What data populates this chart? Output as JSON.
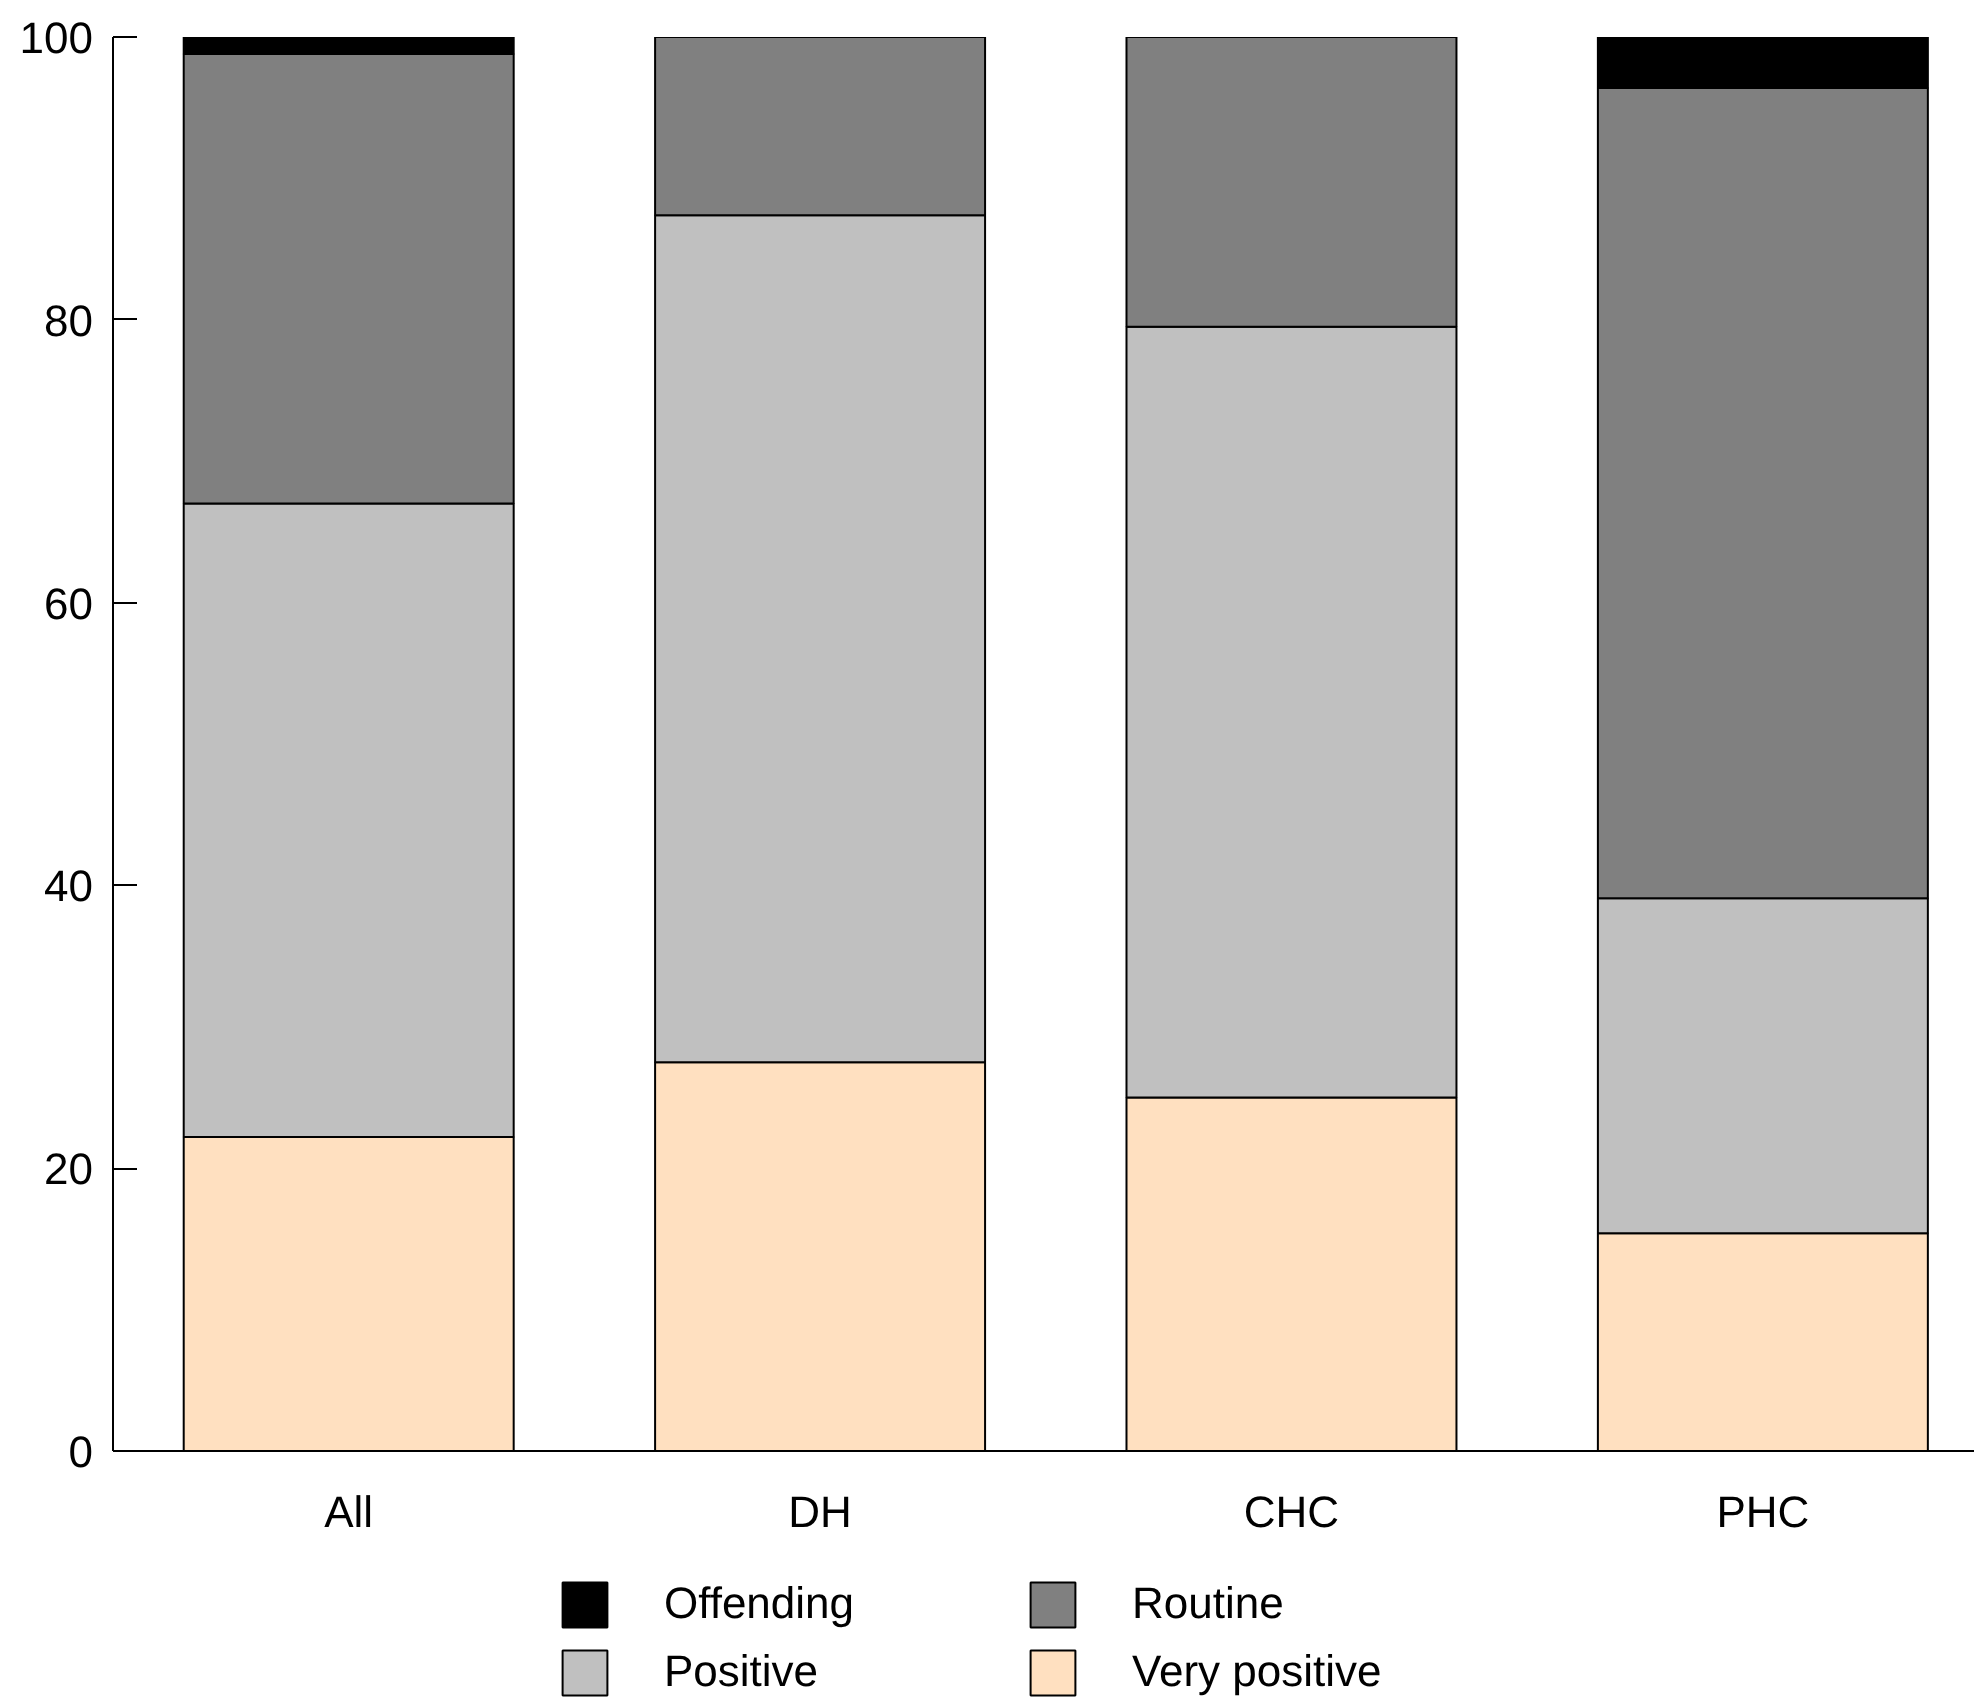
{
  "chart_data": {
    "type": "bar",
    "stacked": true,
    "categories": [
      "All",
      "DH",
      "CHC",
      "PHC"
    ],
    "series": [
      {
        "name": "Very positive",
        "color": "#ffe0c0",
        "values": [
          22.2,
          27.5,
          25.0,
          15.4
        ]
      },
      {
        "name": "Positive",
        "color": "#c0c0c0",
        "values": [
          44.8,
          59.9,
          54.5,
          23.7
        ]
      },
      {
        "name": "Routine",
        "color": "#808080",
        "values": [
          31.8,
          12.6,
          20.5,
          57.3
        ]
      },
      {
        "name": "Offending",
        "color": "#000000",
        "values": [
          1.2,
          null,
          null,
          3.6
        ]
      }
    ],
    "ylim": [
      0,
      100
    ],
    "yticks": [
      0,
      20,
      40,
      60,
      80,
      100
    ],
    "grid": false,
    "legend": "bottom"
  }
}
